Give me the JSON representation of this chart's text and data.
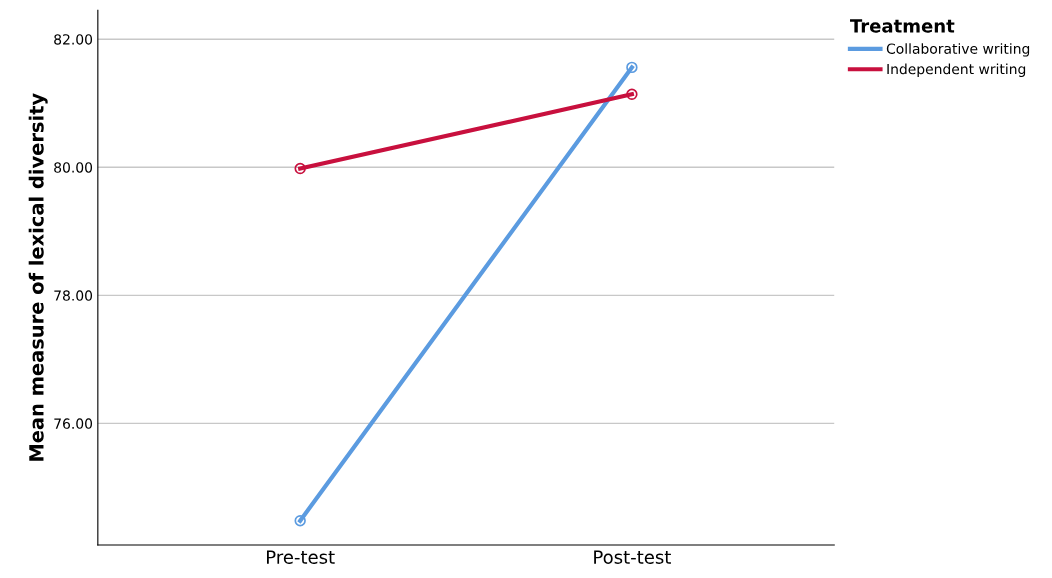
{
  "chart_data": {
    "type": "line",
    "ylabel": "Mean measure of lexical diversity",
    "legend_title": "Treatment",
    "categories": [
      "Pre-test",
      "Post-test"
    ],
    "series": [
      {
        "name": "Collaborative writing",
        "color": "#5b9be0",
        "values": [
          74.48,
          81.56
        ]
      },
      {
        "name": "Independent writing",
        "color": "#c8103e",
        "values": [
          79.98,
          81.14
        ]
      }
    ],
    "ylim": [
      74.1,
      82.45
    ],
    "yticks": [
      {
        "value": 76,
        "label": "76.00"
      },
      {
        "value": 78,
        "label": "78.00"
      },
      {
        "value": 80,
        "label": "80.00"
      },
      {
        "value": 82,
        "label": "82.00"
      }
    ],
    "grid": "y",
    "legend": "right",
    "marker": "circle"
  }
}
